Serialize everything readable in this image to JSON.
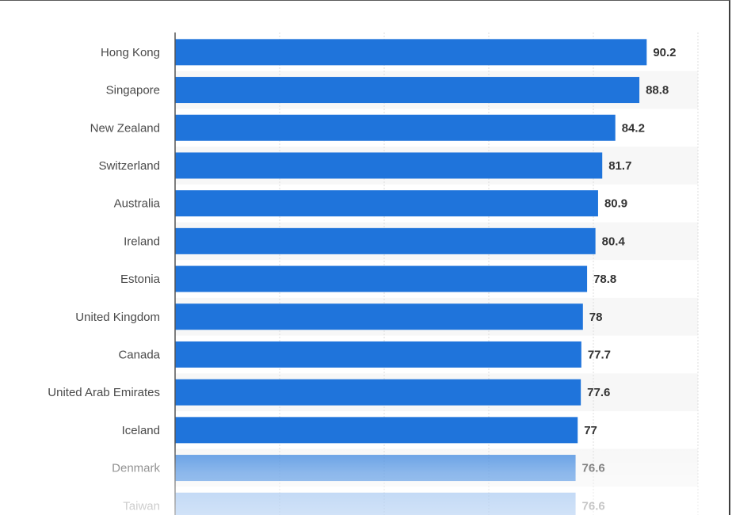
{
  "chart_data": {
    "type": "bar",
    "orientation": "horizontal",
    "categories": [
      "Hong Kong",
      "Singapore",
      "New Zealand",
      "Switzerland",
      "Australia",
      "Ireland",
      "Estonia",
      "United Kingdom",
      "Canada",
      "United Arab Emirates",
      "Iceland",
      "Denmark",
      "Taiwan"
    ],
    "values": [
      90.2,
      88.8,
      84.2,
      81.7,
      80.9,
      80.4,
      78.8,
      78,
      77.7,
      77.6,
      77,
      76.6,
      76.6
    ],
    "value_labels": [
      "90.2",
      "88.8",
      "84.2",
      "81.7",
      "80.9",
      "80.4",
      "78.8",
      "78",
      "77.7",
      "77.6",
      "77",
      "76.6",
      "76.6"
    ],
    "xlim": [
      0,
      100
    ],
    "grid": true,
    "bar_color": "#1f74db"
  }
}
